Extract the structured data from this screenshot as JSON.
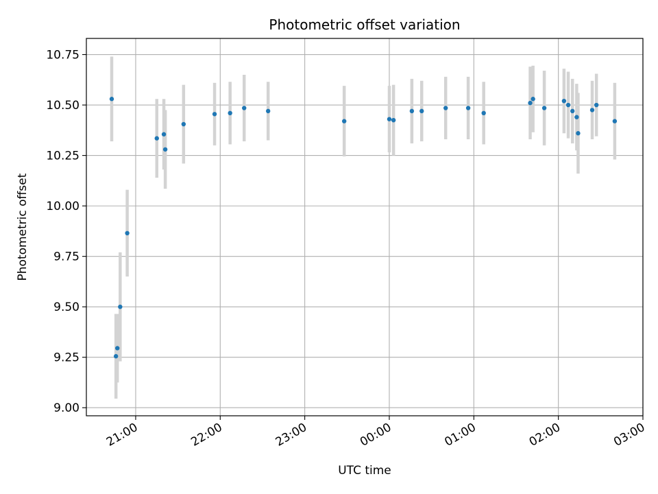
{
  "chart_data": {
    "type": "scatter",
    "title": "Photometric offset variation",
    "xlabel": "UTC time",
    "ylabel": "Photometric offset",
    "x_tick_labels": [
      "21:00",
      "22:00",
      "23:00",
      "00:00",
      "01:00",
      "02:00",
      "03:00"
    ],
    "y_tick_labels": [
      "9.00",
      "9.25",
      "9.50",
      "9.75",
      "10.00",
      "10.25",
      "10.50",
      "10.75"
    ],
    "xlim": [
      "20:25",
      "03:00"
    ],
    "ylim": [
      8.96,
      10.83
    ],
    "grid": true,
    "colors": {
      "marker": "#1f77b4",
      "errorbar": "#d3d3d3",
      "grid": "#b0b0b0"
    },
    "points": [
      {
        "x": "20:43",
        "y": 10.53,
        "err": 0.21
      },
      {
        "x": "20:46",
        "y": 9.255,
        "err": 0.21
      },
      {
        "x": "20:47",
        "y": 9.295,
        "err": 0.17
      },
      {
        "x": "20:49",
        "y": 9.5,
        "err": 0.27
      },
      {
        "x": "20:54",
        "y": 9.865,
        "err": 0.215
      },
      {
        "x": "21:15",
        "y": 10.335,
        "err": 0.195
      },
      {
        "x": "21:20",
        "y": 10.355,
        "err": 0.175
      },
      {
        "x": "21:21",
        "y": 10.28,
        "err": 0.195
      },
      {
        "x": "21:34",
        "y": 10.405,
        "err": 0.195
      },
      {
        "x": "21:56",
        "y": 10.455,
        "err": 0.155
      },
      {
        "x": "22:07",
        "y": 10.46,
        "err": 0.155
      },
      {
        "x": "22:17",
        "y": 10.485,
        "err": 0.165
      },
      {
        "x": "22:34",
        "y": 10.47,
        "err": 0.145
      },
      {
        "x": "23:28",
        "y": 10.42,
        "err": 0.175
      },
      {
        "x": "00:00",
        "y": 10.43,
        "err": 0.165
      },
      {
        "x": "00:03",
        "y": 10.425,
        "err": 0.175
      },
      {
        "x": "00:16",
        "y": 10.47,
        "err": 0.16
      },
      {
        "x": "00:23",
        "y": 10.47,
        "err": 0.15
      },
      {
        "x": "00:40",
        "y": 10.485,
        "err": 0.155
      },
      {
        "x": "00:56",
        "y": 10.485,
        "err": 0.155
      },
      {
        "x": "01:07",
        "y": 10.46,
        "err": 0.155
      },
      {
        "x": "01:40",
        "y": 10.51,
        "err": 0.18
      },
      {
        "x": "01:42",
        "y": 10.53,
        "err": 0.165
      },
      {
        "x": "01:50",
        "y": 10.485,
        "err": 0.185
      },
      {
        "x": "02:04",
        "y": 10.52,
        "err": 0.16
      },
      {
        "x": "02:07",
        "y": 10.5,
        "err": 0.165
      },
      {
        "x": "02:10",
        "y": 10.47,
        "err": 0.16
      },
      {
        "x": "02:13",
        "y": 10.44,
        "err": 0.165
      },
      {
        "x": "02:14",
        "y": 10.36,
        "err": 0.2
      },
      {
        "x": "02:24",
        "y": 10.475,
        "err": 0.145
      },
      {
        "x": "02:27",
        "y": 10.5,
        "err": 0.155
      },
      {
        "x": "02:40",
        "y": 10.42,
        "err": 0.19
      }
    ]
  }
}
